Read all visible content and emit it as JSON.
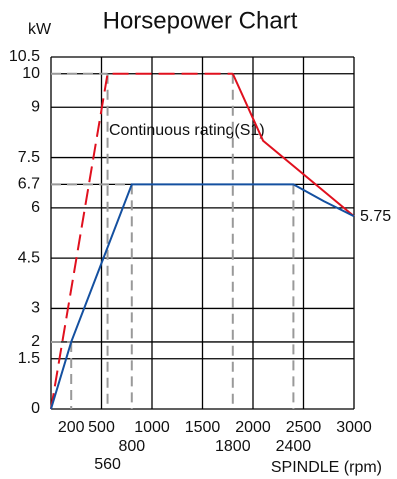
{
  "chart_data": {
    "type": "line",
    "title": "Horsepower Chart",
    "y_label": "kW",
    "x_label": "SPINDLE (rpm)",
    "xlim": [
      0,
      3000
    ],
    "ylim": [
      0,
      10.5
    ],
    "xticks": [
      200,
      500,
      1000,
      1500,
      2000,
      2500,
      3000
    ],
    "xticks_row2": [
      800,
      1800,
      2400
    ],
    "xticks_row3": [
      560
    ],
    "grid_x": [
      500,
      1000,
      1500,
      2000,
      2500,
      3000
    ],
    "yticks": [
      0,
      1.5,
      2,
      3,
      4.5,
      6,
      6.7,
      7.5,
      9,
      10,
      10.5
    ],
    "guides": {
      "x": [
        200,
        560,
        800,
        1800,
        2400
      ],
      "y": [
        2,
        10,
        6.7,
        10,
        6.7
      ],
      "color": "#999999"
    },
    "series": [
      {
        "color": "#e0101e",
        "dash": true,
        "x": [
          0,
          560,
          1800
        ],
        "values": [
          0,
          10,
          10
        ]
      },
      {
        "color": "#e0101e",
        "dash": false,
        "x": [
          1800,
          2100,
          3000
        ],
        "values": [
          10,
          8,
          5.75
        ]
      },
      {
        "color": "#1450a0",
        "dash": false,
        "x": [
          0,
          200,
          800,
          2400,
          2700,
          3000
        ],
        "values": [
          0,
          2,
          6.7,
          6.7,
          6.2,
          5.75
        ]
      }
    ],
    "annotations": [
      "Continuous rating(S1)",
      "5.75"
    ]
  }
}
